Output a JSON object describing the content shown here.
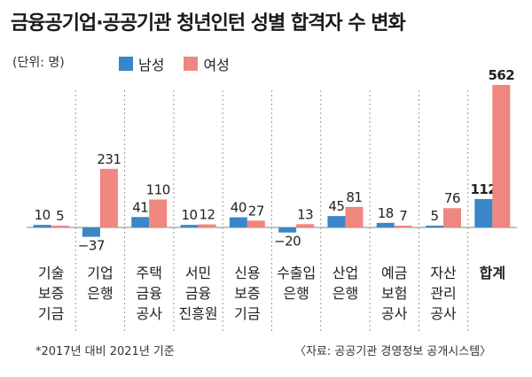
{
  "title": "금융공기업·공공기관 청년인턴 성별 합격자 수 변화",
  "unit_label": "(단위: 명)",
  "legend": {
    "male": "남성",
    "female": "여성"
  },
  "colors": {
    "male": "#3a86c8",
    "female": "#ef8780",
    "divider": "#999999",
    "baseline": "#888888"
  },
  "footnote": "*2017년 대비 2021년 기준",
  "source": "〈자료: 공공기관 경영정보 공개시스템〉",
  "chart_data": {
    "type": "bar",
    "title": "금융공기업·공공기관 청년인턴 성별 합격자 수 변화",
    "unit": "명",
    "categories": [
      [
        "기술",
        "보증",
        "기금"
      ],
      [
        "기업",
        "은행"
      ],
      [
        "주택",
        "금융",
        "공사"
      ],
      [
        "서민",
        "금융",
        "진흥원"
      ],
      [
        "신용",
        "보증",
        "기금"
      ],
      [
        "수출입",
        "은행"
      ],
      [
        "산업",
        "은행"
      ],
      [
        "예금",
        "보험",
        "공사"
      ],
      [
        "자산",
        "관리",
        "공사"
      ],
      [
        "합계"
      ]
    ],
    "series": [
      {
        "name": "남성",
        "values": [
          10,
          -37,
          41,
          10,
          40,
          -20,
          45,
          18,
          5,
          112
        ]
      },
      {
        "name": "여성",
        "values": [
          5,
          231,
          110,
          12,
          27,
          13,
          81,
          7,
          76,
          562
        ]
      }
    ],
    "labels": [
      [
        "10",
        "5"
      ],
      [
        "−37",
        "231"
      ],
      [
        "41",
        "110"
      ],
      [
        "10",
        "12"
      ],
      [
        "40",
        "27"
      ],
      [
        "−20",
        "13"
      ],
      [
        "45",
        "81"
      ],
      [
        "18",
        "7"
      ],
      [
        "5",
        "76"
      ],
      [
        "112",
        "562"
      ]
    ],
    "bold_last_category": true,
    "grid": false,
    "legend_position": "top-left"
  }
}
